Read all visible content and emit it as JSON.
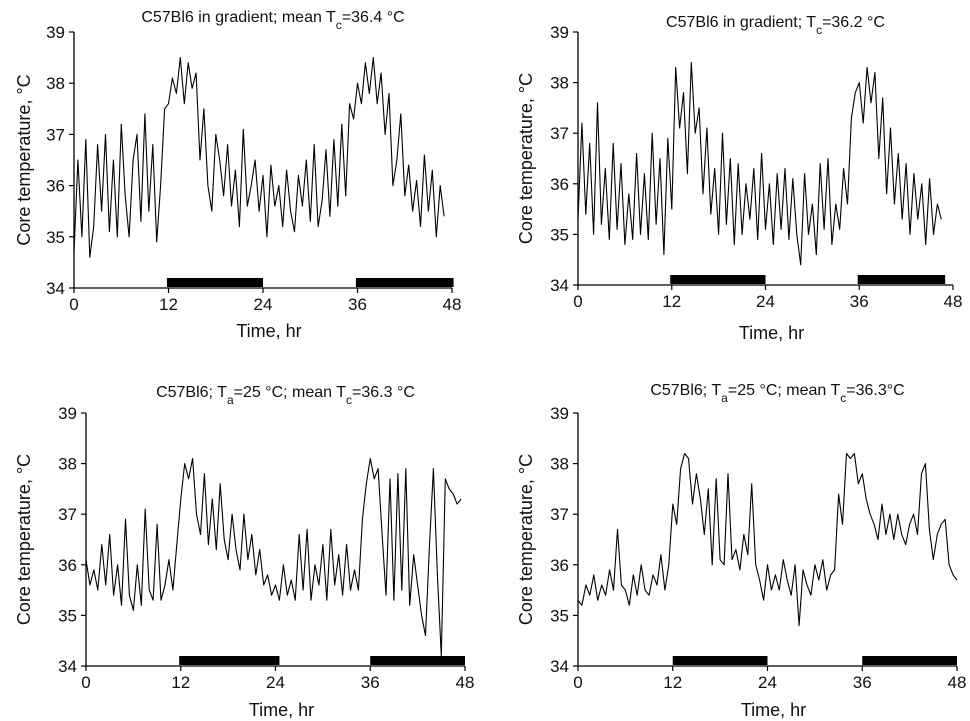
{
  "chart_data": [
    {
      "type": "line",
      "title": "C57Bl6 in gradient; mean T",
      "title_sub": "c",
      "title_tail": "=36.4 °C",
      "xlabel": "Time, hr",
      "ylabel": "Core temperature, °C",
      "xlim": [
        0,
        48
      ],
      "ylim": [
        34,
        39
      ],
      "xticks": [
        "0",
        "12",
        "24",
        "36",
        "48"
      ],
      "yticks": [
        "34",
        "35",
        "36",
        "37",
        "38",
        "39"
      ],
      "dark_phases": [
        [
          11.8,
          24.0
        ],
        [
          35.8,
          48.2
        ]
      ],
      "series": [
        {
          "x": [
            0,
            0.5,
            1,
            1.5,
            2,
            2.5,
            3,
            3.5,
            4,
            4.5,
            5,
            5.5,
            6,
            6.5,
            7,
            7.5,
            8,
            8.5,
            9,
            9.5,
            10,
            10.5,
            11,
            11.5,
            12,
            12.5,
            13,
            13.5,
            14,
            14.5,
            15,
            15.5,
            16,
            16.5,
            17,
            17.5,
            18,
            18.5,
            19,
            19.5,
            20,
            20.5,
            21,
            21.5,
            22,
            22.5,
            23,
            23.5,
            24,
            24.5,
            25,
            25.5,
            26,
            26.5,
            27,
            27.5,
            28,
            28.5,
            29,
            29.5,
            30,
            30.5,
            31,
            31.5,
            32,
            32.5,
            33,
            33.5,
            34,
            34.5,
            35,
            35.5,
            36,
            36.5,
            37,
            37.5,
            38,
            38.5,
            39,
            39.5,
            40,
            40.5,
            41,
            41.5,
            42,
            42.5,
            43,
            43.5,
            44,
            44.5,
            45,
            45.5,
            46,
            46.5,
            47
          ],
          "values": [
            34.7,
            36.5,
            35.0,
            36.9,
            34.6,
            35.2,
            36.8,
            35.5,
            37.0,
            35.1,
            36.5,
            35.0,
            37.2,
            35.8,
            35.0,
            36.5,
            37.0,
            35.3,
            37.4,
            35.5,
            36.8,
            34.9,
            36.0,
            37.5,
            37.6,
            38.1,
            37.8,
            38.5,
            37.6,
            38.4,
            37.9,
            38.2,
            36.5,
            37.5,
            36.0,
            35.5,
            37.0,
            36.5,
            35.8,
            36.8,
            35.6,
            36.3,
            35.2,
            37.1,
            35.6,
            36.0,
            36.5,
            35.5,
            36.2,
            35.0,
            36.4,
            35.6,
            36.0,
            35.2,
            36.3,
            35.5,
            35.1,
            36.2,
            35.6,
            36.5,
            35.3,
            36.8,
            35.2,
            35.7,
            36.7,
            35.4,
            36.9,
            35.6,
            37.2,
            35.8,
            37.6,
            37.3,
            38.0,
            37.6,
            38.4,
            37.8,
            38.5,
            37.6,
            38.2,
            37.0,
            37.8,
            36.0,
            36.5,
            37.4,
            35.8,
            36.4,
            35.5,
            36.1,
            35.2,
            36.6,
            35.5,
            36.3,
            35.0,
            36.0,
            35.4
          ]
        }
      ]
    },
    {
      "type": "line",
      "title": "C57Bl6 in gradient; T",
      "title_sub": "c",
      "title_tail": "=36.2 °C",
      "xlabel": "Time, hr",
      "ylabel": "Core temperature, °C",
      "xlim": [
        0,
        48
      ],
      "ylim": [
        34,
        39
      ],
      "xticks": [
        "0",
        "12",
        "24",
        "36",
        "48"
      ],
      "yticks": [
        "34",
        "35",
        "36",
        "37",
        "38",
        "39"
      ],
      "dark_phases": [
        [
          11.8,
          24.0
        ],
        [
          35.8,
          47.0
        ]
      ],
      "series": [
        {
          "x": [
            0,
            0.5,
            1,
            1.5,
            2,
            2.5,
            3,
            3.5,
            4,
            4.5,
            5,
            5.5,
            6,
            6.5,
            7,
            7.5,
            8,
            8.5,
            9,
            9.5,
            10,
            10.5,
            11,
            11.5,
            12,
            12.5,
            13,
            13.5,
            14,
            14.5,
            15,
            15.5,
            16,
            16.5,
            17,
            17.5,
            18,
            18.5,
            19,
            19.5,
            20,
            20.5,
            21,
            21.5,
            22,
            22.5,
            23,
            23.5,
            24,
            24.5,
            25,
            25.5,
            26,
            26.5,
            27,
            27.5,
            28,
            28.5,
            29,
            29.5,
            30,
            30.5,
            31,
            31.5,
            32,
            32.5,
            33,
            33.5,
            34,
            34.5,
            35,
            35.5,
            36,
            36.5,
            37,
            37.5,
            38,
            38.5,
            39,
            39.5,
            40,
            40.5,
            41,
            41.5,
            42,
            42.5,
            43,
            43.5,
            44,
            44.5,
            45,
            45.5,
            46,
            46.5
          ],
          "values": [
            35.3,
            37.2,
            35.4,
            36.8,
            35.0,
            37.6,
            35.2,
            36.3,
            34.9,
            36.8,
            35.1,
            36.4,
            34.8,
            35.8,
            34.9,
            36.6,
            35.0,
            36.2,
            34.9,
            37.0,
            35.2,
            36.5,
            34.6,
            36.9,
            35.5,
            38.3,
            37.1,
            37.8,
            36.2,
            38.4,
            37.0,
            37.5,
            35.8,
            37.1,
            35.4,
            36.3,
            35.0,
            37.0,
            35.2,
            36.5,
            34.8,
            36.4,
            35.0,
            36.0,
            35.3,
            36.3,
            34.9,
            36.6,
            35.1,
            36.0,
            34.8,
            36.2,
            35.1,
            36.3,
            34.9,
            36.1,
            35.0,
            34.4,
            36.2,
            35.0,
            35.6,
            34.6,
            36.4,
            35.1,
            36.5,
            34.8,
            35.6,
            35.1,
            36.3,
            35.6,
            37.3,
            37.8,
            38.0,
            37.2,
            38.3,
            37.6,
            38.2,
            36.5,
            37.7,
            35.8,
            37.1,
            35.6,
            36.6,
            35.3,
            36.4,
            35.0,
            36.2,
            35.3,
            36.0,
            34.8,
            36.1,
            35.0,
            35.6,
            35.3
          ]
        }
      ]
    },
    {
      "type": "line",
      "title": "C57Bl6; T",
      "title_sub": "a",
      "title_tail": "=25 °C; mean T",
      "title_sub2": "c",
      "title_tail2": "=36.3 °C",
      "xlabel": "Time, hr",
      "ylabel": "Core temperature, °C",
      "xlim": [
        0,
        48
      ],
      "ylim": [
        34,
        39
      ],
      "xticks": [
        "0",
        "12",
        "24",
        "36",
        "48"
      ],
      "yticks": [
        "34",
        "35",
        "36",
        "37",
        "38",
        "39"
      ],
      "dark_phases": [
        [
          11.8,
          24.5
        ],
        [
          36.0,
          48.0
        ]
      ],
      "series": [
        {
          "x": [
            0,
            0.5,
            1,
            1.5,
            2,
            2.5,
            3,
            3.5,
            4,
            4.5,
            5,
            5.5,
            6,
            6.5,
            7,
            7.5,
            8,
            8.5,
            9,
            9.5,
            10,
            10.5,
            11,
            11.5,
            12,
            12.5,
            13,
            13.5,
            14,
            14.5,
            15,
            15.5,
            16,
            16.5,
            17,
            17.5,
            18,
            18.5,
            19,
            19.5,
            20,
            20.5,
            21,
            21.5,
            22,
            22.5,
            23,
            23.5,
            24,
            24.5,
            25,
            25.5,
            26,
            26.5,
            27,
            27.5,
            28,
            28.5,
            29,
            29.5,
            30,
            30.5,
            31,
            31.5,
            32,
            32.5,
            33,
            33.5,
            34,
            34.5,
            35,
            35.5,
            36,
            36.5,
            37,
            37.5,
            38,
            38.5,
            39,
            39.5,
            40,
            40.5,
            41,
            41.5,
            42,
            42.5,
            43,
            43.5,
            44,
            44.5,
            45,
            45.5,
            46,
            46.5,
            47,
            47.5
          ],
          "values": [
            36.1,
            35.6,
            35.9,
            35.5,
            36.4,
            35.6,
            36.6,
            35.4,
            36.0,
            35.2,
            36.9,
            35.4,
            35.1,
            36.0,
            35.2,
            37.1,
            35.5,
            35.3,
            36.8,
            35.3,
            35.6,
            36.1,
            35.5,
            36.4,
            37.3,
            38.0,
            37.7,
            38.1,
            37.0,
            36.6,
            37.8,
            36.4,
            37.3,
            36.3,
            37.6,
            36.5,
            36.1,
            37.0,
            36.3,
            35.9,
            37.0,
            36.1,
            36.6,
            35.8,
            36.3,
            35.6,
            35.8,
            35.4,
            35.6,
            35.3,
            36.0,
            35.4,
            35.7,
            35.3,
            36.6,
            35.5,
            36.7,
            35.3,
            36.0,
            35.6,
            36.4,
            35.3,
            36.7,
            35.6,
            36.2,
            35.4,
            36.4,
            35.5,
            35.9,
            35.5,
            36.9,
            37.6,
            38.1,
            37.7,
            37.9,
            36.6,
            35.4,
            37.7,
            35.3,
            37.8,
            35.5,
            37.9,
            35.2,
            36.2,
            35.6,
            35.0,
            34.6,
            36.4,
            37.9,
            35.8,
            34.2,
            37.7,
            37.5,
            37.4,
            37.2,
            37.3
          ]
        }
      ]
    },
    {
      "type": "line",
      "title": "C57Bl6; T",
      "title_sub": "a",
      "title_tail": "=25 °C; mean T",
      "title_sub2": "c",
      "title_tail2": "=36.3°C",
      "xlabel": "Time, hr",
      "ylabel": "Core temperature, °C",
      "xlim": [
        0,
        48
      ],
      "ylim": [
        34,
        39
      ],
      "xticks": [
        "0",
        "12",
        "24",
        "36",
        "48"
      ],
      "yticks": [
        "34",
        "35",
        "36",
        "37",
        "38",
        "39"
      ],
      "dark_phases": [
        [
          12.0,
          24.0
        ],
        [
          36.0,
          48.0
        ]
      ],
      "series": [
        {
          "x": [
            0,
            0.5,
            1,
            1.5,
            2,
            2.5,
            3,
            3.5,
            4,
            4.5,
            5,
            5.5,
            6,
            6.5,
            7,
            7.5,
            8,
            8.5,
            9,
            9.5,
            10,
            10.5,
            11,
            11.5,
            12,
            12.5,
            13,
            13.5,
            14,
            14.5,
            15,
            15.5,
            16,
            16.5,
            17,
            17.5,
            18,
            18.5,
            19,
            19.5,
            20,
            20.5,
            21,
            21.5,
            22,
            22.5,
            23,
            23.5,
            24,
            24.5,
            25,
            25.5,
            26,
            26.5,
            27,
            27.5,
            28,
            28.5,
            29,
            29.5,
            30,
            30.5,
            31,
            31.5,
            32,
            32.5,
            33,
            33.5,
            34,
            34.5,
            35,
            35.5,
            36,
            36.5,
            37,
            37.5,
            38,
            38.5,
            39,
            39.5,
            40,
            40.5,
            41,
            41.5,
            42,
            42.5,
            43,
            43.5,
            44,
            44.5,
            45,
            45.5,
            46,
            46.5,
            47,
            47.5,
            48
          ],
          "values": [
            35.3,
            35.2,
            35.6,
            35.4,
            35.8,
            35.3,
            35.6,
            35.4,
            35.9,
            35.5,
            36.7,
            35.6,
            35.5,
            35.2,
            35.8,
            35.4,
            36.0,
            35.5,
            35.4,
            35.8,
            35.6,
            36.2,
            35.5,
            36.0,
            37.2,
            36.8,
            37.9,
            38.2,
            38.1,
            37.2,
            37.8,
            37.3,
            36.6,
            37.5,
            36.0,
            37.7,
            36.1,
            36.0,
            37.8,
            36.1,
            36.3,
            35.9,
            36.6,
            36.2,
            37.6,
            36.0,
            35.7,
            35.3,
            36.0,
            35.5,
            35.8,
            35.5,
            36.1,
            35.7,
            35.4,
            36.0,
            34.8,
            35.9,
            35.6,
            35.4,
            36.0,
            35.7,
            36.1,
            35.5,
            35.8,
            35.9,
            37.4,
            36.8,
            38.2,
            38.1,
            38.2,
            37.6,
            37.8,
            37.3,
            37.0,
            36.8,
            36.5,
            37.2,
            36.6,
            37.0,
            36.5,
            37.0,
            36.6,
            36.4,
            36.8,
            37.0,
            36.6,
            37.8,
            38.0,
            36.7,
            36.1,
            36.6,
            36.8,
            36.9,
            36.0,
            35.8,
            35.7
          ]
        }
      ]
    }
  ]
}
